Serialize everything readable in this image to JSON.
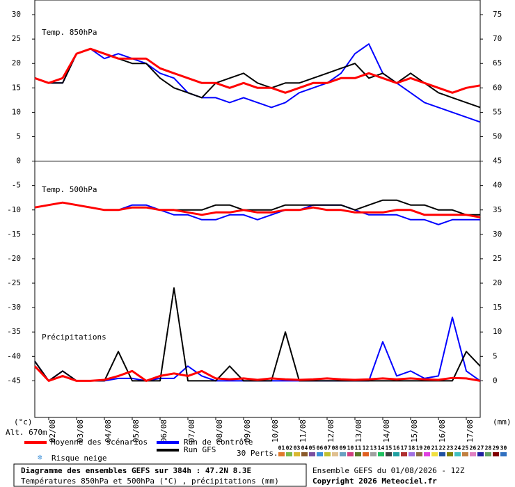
{
  "chart_data": {
    "type": "line",
    "panels": {
      "t850": "Temp. 850hPa",
      "t500": "Temp. 500hPa",
      "precip": "Précipitations"
    },
    "y_unit": "(°c)",
    "y2_unit": "(mm)",
    "altitude": "Alt. 670m",
    "xlim": [
      0,
      384
    ],
    "xticks": [
      {
        "value": 12,
        "label": "02/08"
      },
      {
        "value": 36,
        "label": "03/08"
      },
      {
        "value": 60,
        "label": "04/08"
      },
      {
        "value": 84,
        "label": "05/08"
      },
      {
        "value": 108,
        "label": "06/08"
      },
      {
        "value": 132,
        "label": "07/08"
      },
      {
        "value": 156,
        "label": "08/08"
      },
      {
        "value": 180,
        "label": "09/08"
      },
      {
        "value": 204,
        "label": "10/08"
      },
      {
        "value": 228,
        "label": "11/08"
      },
      {
        "value": 252,
        "label": "12/08"
      },
      {
        "value": 276,
        "label": "13/08"
      },
      {
        "value": 300,
        "label": "14/08"
      },
      {
        "value": 324,
        "label": "15/08"
      },
      {
        "value": 348,
        "label": "16/08"
      },
      {
        "value": 372,
        "label": "17/08"
      }
    ],
    "ylim": [
      -52.5,
      33
    ],
    "yticks": [
      30,
      25,
      20,
      15,
      10,
      5,
      0,
      -5,
      -10,
      -15,
      -20,
      -25,
      -30,
      -35,
      -40,
      -45
    ],
    "y2lim": [
      -7.5,
      78
    ],
    "y2ticks": [
      75,
      70,
      65,
      60,
      55,
      50,
      45,
      40,
      35,
      30,
      25,
      20,
      15,
      10,
      5,
      0
    ],
    "panel_divider": 0,
    "x": [
      0,
      12,
      24,
      36,
      48,
      60,
      72,
      84,
      96,
      108,
      120,
      132,
      144,
      156,
      168,
      180,
      192,
      204,
      216,
      228,
      240,
      252,
      264,
      276,
      288,
      300,
      312,
      324,
      336,
      348,
      360,
      372,
      384
    ],
    "series": [
      {
        "name": "Run de contrôle",
        "color": "#0000ff",
        "t850": [
          17,
          16,
          16,
          22,
          23,
          21,
          22,
          21,
          20,
          18,
          17,
          14,
          13,
          13,
          12,
          13,
          12,
          11,
          12,
          14,
          15,
          16,
          18,
          22,
          24,
          18,
          16,
          14,
          12,
          11,
          10,
          9,
          8
        ],
        "t500": [
          -9.5,
          -9,
          -8.5,
          -9,
          -9.5,
          -10,
          -10,
          -9,
          -9,
          -10,
          -11,
          -11,
          -12,
          -12,
          -11,
          -11,
          -12,
          -11,
          -10,
          -10,
          -9,
          -9,
          -9,
          -10,
          -11,
          -11,
          -11,
          -12,
          -12,
          -13,
          -12,
          -12,
          -12
        ],
        "precip": [
          4,
          0,
          2,
          0,
          0,
          0,
          0.5,
          0.5,
          0,
          0.5,
          0.5,
          3,
          1,
          0,
          0,
          0,
          0,
          0,
          0,
          0,
          0,
          0,
          0,
          0,
          0,
          8,
          1,
          2,
          0.5,
          1,
          13,
          2,
          0
        ]
      },
      {
        "name": "Run GFS",
        "color": "#000000",
        "t850": [
          17,
          16,
          16,
          22,
          23,
          22,
          21,
          20,
          20,
          17,
          15,
          14,
          13,
          16,
          17,
          18,
          16,
          15,
          16,
          16,
          17,
          18,
          19,
          20,
          17,
          18,
          16,
          18,
          16,
          14,
          13,
          12,
          11
        ],
        "t500": [
          -9.5,
          -9,
          -8.5,
          -9,
          -9.5,
          -10,
          -10,
          -9.5,
          -9.5,
          -10,
          -10,
          -10,
          -10,
          -9,
          -9,
          -10,
          -10,
          -10,
          -9,
          -9,
          -9,
          -9,
          -9,
          -10,
          -9,
          -8,
          -8,
          -9,
          -9,
          -10,
          -10,
          -11,
          -11
        ],
        "precip": [
          4,
          0,
          2,
          0,
          0,
          0,
          6,
          0,
          0,
          0,
          19,
          0,
          0,
          0,
          3,
          0,
          0,
          0,
          10,
          0,
          0,
          0,
          0,
          0,
          0,
          0,
          0,
          0,
          0,
          0,
          0,
          6,
          3
        ]
      },
      {
        "name": "Moyenne des scénarios",
        "color": "#ff0000",
        "t850": [
          17,
          16,
          17,
          22,
          23,
          22,
          21,
          21,
          21,
          19,
          18,
          17,
          16,
          16,
          15,
          16,
          15,
          15,
          14,
          15,
          16,
          16,
          17,
          17,
          18,
          17,
          16,
          17,
          16,
          15,
          14,
          15,
          15.5
        ],
        "t500": [
          -9.5,
          -9,
          -8.5,
          -9,
          -9.5,
          -10,
          -10,
          -9.5,
          -9.5,
          -10,
          -10,
          -10.5,
          -11,
          -10.5,
          -10.5,
          -10,
          -10.5,
          -10.5,
          -10,
          -10,
          -9.5,
          -10,
          -10,
          -10.5,
          -10.5,
          -10.5,
          -10,
          -10,
          -11,
          -11,
          -11,
          -11,
          -11.5
        ],
        "precip": [
          3,
          0,
          1,
          0,
          0,
          0.2,
          1,
          2,
          0,
          1,
          1.5,
          1,
          2,
          0.5,
          0.3,
          0.5,
          0.2,
          0.5,
          0.3,
          0.2,
          0.3,
          0.5,
          0.3,
          0.2,
          0.3,
          0.5,
          0.3,
          0.5,
          0.3,
          0.2,
          0.6,
          0.5,
          0
        ]
      }
    ],
    "snow_risk": "Risque neige",
    "perts_label": "30 Perts.",
    "perts": [
      {
        "name": "01",
        "color": "#e07a2c"
      },
      {
        "name": "02",
        "color": "#78b84a"
      },
      {
        "name": "03",
        "color": "#d9b82f"
      },
      {
        "name": "04",
        "color": "#8a5a2b"
      },
      {
        "name": "05",
        "color": "#7a4fa0"
      },
      {
        "name": "06",
        "color": "#3a8fd8"
      },
      {
        "name": "07",
        "color": "#c0c030"
      },
      {
        "name": "08",
        "color": "#e0c090"
      },
      {
        "name": "09",
        "color": "#6aa0c0"
      },
      {
        "name": "10",
        "color": "#d04080"
      },
      {
        "name": "11",
        "color": "#5a7a2a"
      },
      {
        "name": "12",
        "color": "#e06020"
      },
      {
        "name": "13",
        "color": "#a0a0a0"
      },
      {
        "name": "14",
        "color": "#20c060"
      },
      {
        "name": "15",
        "color": "#404040"
      },
      {
        "name": "16",
        "color": "#20a0a0"
      },
      {
        "name": "17",
        "color": "#b03030"
      },
      {
        "name": "18",
        "color": "#a070e0"
      },
      {
        "name": "19",
        "color": "#8a6a40"
      },
      {
        "name": "20",
        "color": "#e040e0"
      },
      {
        "name": "21",
        "color": "#f0e040"
      },
      {
        "name": "22",
        "color": "#2050a0"
      },
      {
        "name": "23",
        "color": "#808000"
      },
      {
        "name": "24",
        "color": "#40c0c0"
      },
      {
        "name": "25",
        "color": "#c08040"
      },
      {
        "name": "26",
        "color": "#e080c0"
      },
      {
        "name": "27",
        "color": "#2020a0"
      },
      {
        "name": "28",
        "color": "#60a060"
      },
      {
        "name": "29",
        "color": "#800000"
      },
      {
        "name": "30",
        "color": "#3070c0"
      }
    ],
    "footer": {
      "title": "Diagramme des ensembles GEFS sur 384h : 47.2N 8.3E",
      "subtitle": "Températures 850hPa et 500hPa (°C) , précipitations (mm)",
      "run": "Ensemble GEFS du 01/08/2026 - 12Z",
      "copyright": "Copyright 2026 Meteociel.fr"
    }
  }
}
